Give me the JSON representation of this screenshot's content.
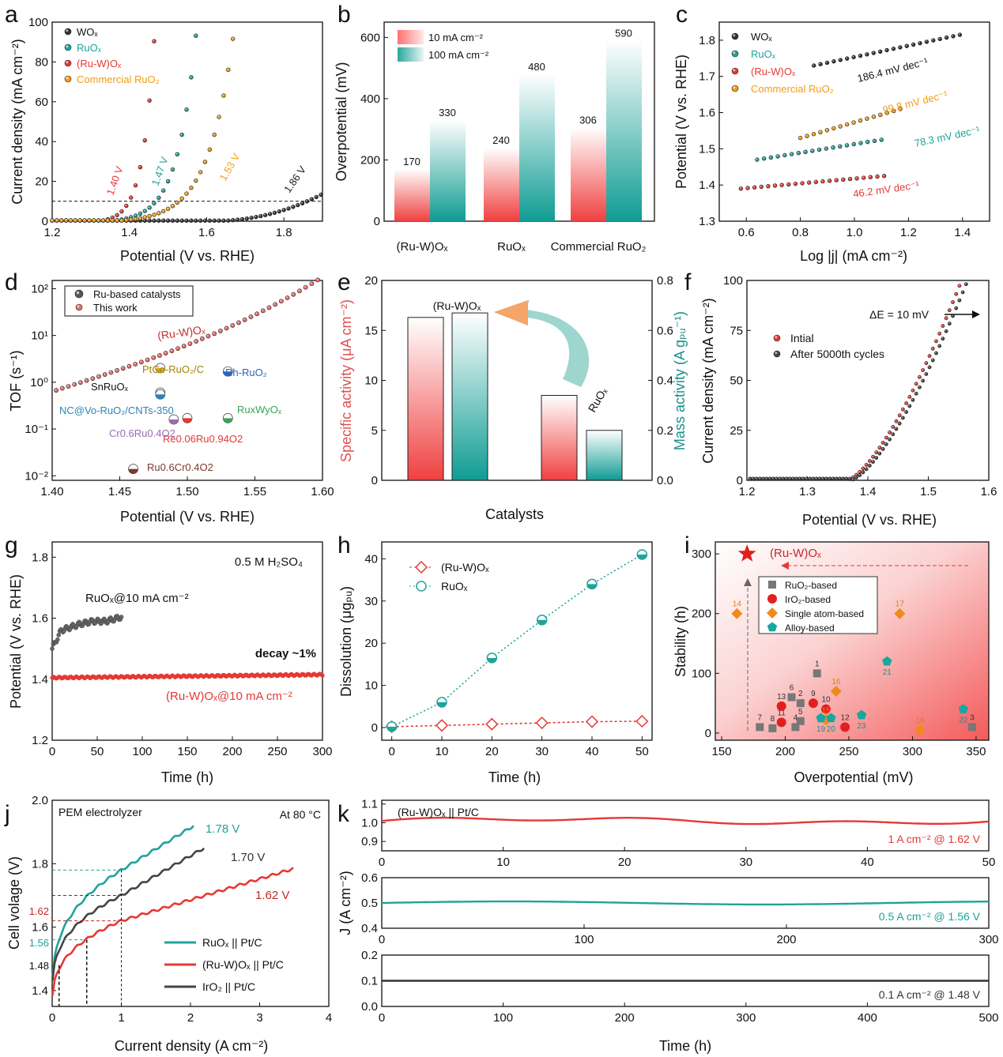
{
  "colors": {
    "black": "#333333",
    "teal": "#1fa39b",
    "red": "#e53935",
    "orange": "#f39c12",
    "grey": "#8a8a8a",
    "purple": "#9c6ab0",
    "blue": "#2a64c0",
    "green": "#3aa35a"
  },
  "chart_data": [
    {
      "panel": "a",
      "type": "line",
      "letter": "a",
      "xlabel": "Potential (V vs. RHE)",
      "ylabel": "Current density (mA cm⁻²)",
      "xlim": [
        1.2,
        1.9
      ],
      "ylim": [
        0,
        100
      ],
      "xticks": [
        "1.2",
        "1.4",
        "1.6",
        "1.8"
      ],
      "yticks": [
        "0",
        "20",
        "40",
        "60",
        "80",
        "100"
      ],
      "ref_line": 10,
      "series": [
        {
          "name": "WOx",
          "onset": 1.6,
          "v10": 1.86,
          "label": "1.86 V"
        },
        {
          "name": "RuOx",
          "onset": 1.36,
          "v10": 1.47,
          "label": "1.47 V"
        },
        {
          "name": "(Ru-W)Ox",
          "onset": 1.33,
          "v10": 1.4,
          "label": "1.40 V"
        },
        {
          "name": "Commercial RuO2",
          "onset": 1.38,
          "v10": 1.53,
          "label": "1.53 V"
        }
      ]
    },
    {
      "panel": "b",
      "type": "bar",
      "letter": "b",
      "ylabel": "Overpotential (mV)",
      "ylim": [
        0,
        650
      ],
      "yticks": [
        "0",
        "200",
        "400",
        "600"
      ],
      "categories": [
        "(Ru-W)Ox",
        "RuOx",
        "Commercial RuO2"
      ],
      "series": [
        {
          "name": "10 mA cm⁻²",
          "values": [
            170,
            240,
            306
          ]
        },
        {
          "name": "100 mA cm⁻²",
          "values": [
            330,
            480,
            590
          ]
        }
      ]
    },
    {
      "panel": "c",
      "type": "scatter",
      "letter": "c",
      "xlabel": "Log |j| (mA cm⁻²)",
      "ylabel": "Potential (V vs. RHE)",
      "xlim": [
        0.5,
        1.5
      ],
      "ylim": [
        1.3,
        1.85
      ],
      "xticks": [
        "0.6",
        "0.8",
        "1.0",
        "1.2",
        "1.4"
      ],
      "yticks": [
        "1.3",
        "1.4",
        "1.5",
        "1.6",
        "1.7",
        "1.8"
      ],
      "series": [
        {
          "name": "WOx",
          "x": [
            0.85,
            1.39
          ],
          "y": [
            1.73,
            1.815
          ],
          "slope": "186.4 mV dec⁻¹"
        },
        {
          "name": "RuOx",
          "x": [
            0.64,
            1.1
          ],
          "y": [
            1.47,
            1.525
          ],
          "slope": "78.3 mV dec⁻¹"
        },
        {
          "name": "(Ru-W)Ox",
          "x": [
            0.58,
            1.11
          ],
          "y": [
            1.39,
            1.425
          ],
          "slope": "46.2 mV dec⁻¹"
        },
        {
          "name": "Commercial RuO2",
          "x": [
            0.8,
            1.17
          ],
          "y": [
            1.53,
            1.61
          ],
          "slope": "99.8 mV dec⁻¹"
        }
      ]
    },
    {
      "panel": "d",
      "type": "scatter",
      "letter": "d",
      "xlabel": "Potential (V vs. RHE)",
      "ylabel": "TOF (s⁻¹)",
      "xlim": [
        1.4,
        1.6
      ],
      "yscale": "log",
      "ylim": [
        0.008,
        150
      ],
      "xticks": [
        "1.40",
        "1.45",
        "1.50",
        "1.55",
        "1.60"
      ],
      "yticks": [
        "10⁻²",
        "10⁻¹",
        "10⁰",
        "10¹",
        "10²"
      ],
      "legend": [
        "Ru-based catalysts",
        "This work"
      ],
      "curve_label": "(Ru-W)Ox",
      "points": [
        {
          "name": "PtCo-RuO2/C",
          "x": 1.48,
          "y": 2.0
        },
        {
          "name": "SnRuOx",
          "x": 1.48,
          "y": 0.6
        },
        {
          "name": "Rh-RuO2",
          "x": 1.53,
          "y": 1.7
        },
        {
          "name": "NC@Vo-RuO2/CNTs-350",
          "x": 1.48,
          "y": 0.55
        },
        {
          "name": "RuxWyOx",
          "x": 1.53,
          "y": 0.17
        },
        {
          "name": "Re0.06Ru0.94O2",
          "x": 1.5,
          "y": 0.17
        },
        {
          "name": "Cr0.6Ru0.4O2",
          "x": 1.49,
          "y": 0.16
        },
        {
          "name": "Ru0.6Cr0.4O2",
          "x": 1.46,
          "y": 0.014
        }
      ]
    },
    {
      "panel": "e",
      "type": "bar",
      "letter": "e",
      "xlabel": "Catalysts",
      "ylabel": "Specific activity (μA cm⁻²)",
      "ylabel2": "Mass activity (A gₚᵤ⁻¹)",
      "ylim": [
        0,
        20
      ],
      "ylim2": [
        0,
        0.8
      ],
      "yticks": [
        "0",
        "5",
        "10",
        "15",
        "20"
      ],
      "yticks2": [
        "0.0",
        "0.2",
        "0.4",
        "0.6",
        "0.8"
      ],
      "categories": [
        "(Ru-W)Ox",
        "RuOx"
      ],
      "series": [
        {
          "name": "Specific activity",
          "values": [
            16.3,
            8.5
          ]
        },
        {
          "name": "Mass activity",
          "values": [
            0.67,
            0.2
          ]
        }
      ]
    },
    {
      "panel": "f",
      "type": "line",
      "letter": "f",
      "xlabel": "Potential (V vs. RHE)",
      "ylabel": "Current density (mA cm⁻²)",
      "xlim": [
        1.2,
        1.6
      ],
      "ylim": [
        0,
        100
      ],
      "xticks": [
        "1.2",
        "1.3",
        "1.4",
        "1.5",
        "1.6"
      ],
      "yticks": [
        "0",
        "25",
        "50",
        "75",
        "100"
      ],
      "annotation": "ΔE = 10 mV",
      "series": [
        {
          "name": "Intial",
          "v100": 1.555
        },
        {
          "name": "After 5000th cycles",
          "v100": 1.565
        }
      ]
    },
    {
      "panel": "g",
      "type": "line",
      "letter": "g",
      "xlabel": "Time (h)",
      "ylabel": "Potential (V vs. RHE)",
      "xlim": [
        0,
        300
      ],
      "ylim": [
        1.2,
        1.85
      ],
      "xticks": [
        "0",
        "50",
        "100",
        "150",
        "200",
        "250",
        "300"
      ],
      "yticks": [
        "1.2",
        "1.4",
        "1.6",
        "1.8"
      ],
      "electrolyte": "0.5 M H₂SO₄",
      "decay": "decay ~1%",
      "series": [
        {
          "name": "RuOx@10 mA cm⁻²",
          "x": [
            0,
            10,
            30,
            45,
            60,
            78
          ],
          "y": [
            1.5,
            1.56,
            1.58,
            1.59,
            1.59,
            1.605
          ]
        },
        {
          "name": "(Ru-W)Ox@10 mA cm⁻²",
          "x": [
            0,
            300
          ],
          "y": [
            1.405,
            1.415
          ]
        }
      ]
    },
    {
      "panel": "h",
      "type": "line",
      "letter": "h",
      "xlabel": "Time (h)",
      "ylabel": "Dissolution (μgₚᵤ)",
      "xlim": [
        -2,
        52
      ],
      "ylim": [
        -3,
        44
      ],
      "xticks": [
        "0",
        "10",
        "20",
        "30",
        "40",
        "50"
      ],
      "yticks": [
        "0",
        "10",
        "20",
        "30",
        "40"
      ],
      "x": [
        0,
        10,
        20,
        30,
        40,
        50
      ],
      "series": [
        {
          "name": "(Ru-W)Ox",
          "values": [
            0.2,
            0.5,
            0.8,
            1.1,
            1.4,
            1.5
          ]
        },
        {
          "name": "RuOx",
          "values": [
            0.2,
            6,
            16.5,
            25.5,
            34,
            41
          ]
        }
      ]
    },
    {
      "panel": "i",
      "type": "scatter",
      "letter": "i",
      "xlabel": "Overpotential (mV)",
      "ylabel": "Stability (h)",
      "xlim": [
        145,
        360
      ],
      "ylim": [
        -12,
        320
      ],
      "xticks": [
        "150",
        "200",
        "250",
        "300",
        "350"
      ],
      "yticks": [
        "0",
        "100",
        "200",
        "300"
      ],
      "star": {
        "name": "(Ru-W)Ox",
        "x": 170,
        "y": 300
      },
      "legend": [
        "RuO₂-based",
        "IrO₂-based",
        "Single atom-based",
        "Alloy-based"
      ],
      "points": [
        {
          "id": "1",
          "g": 0,
          "x": 225,
          "y": 100
        },
        {
          "id": "2",
          "g": 0,
          "x": 212,
          "y": 50
        },
        {
          "id": "3",
          "g": 0,
          "x": 347,
          "y": 10
        },
        {
          "id": "4",
          "g": 0,
          "x": 208,
          "y": 10
        },
        {
          "id": "5",
          "g": 0,
          "x": 212,
          "y": 20
        },
        {
          "id": "6",
          "g": 0,
          "x": 205,
          "y": 60
        },
        {
          "id": "7",
          "g": 0,
          "x": 180,
          "y": 10
        },
        {
          "id": "8",
          "g": 0,
          "x": 190,
          "y": 8
        },
        {
          "id": "9",
          "g": 1,
          "x": 222,
          "y": 50
        },
        {
          "id": "10",
          "g": 1,
          "x": 232,
          "y": 40
        },
        {
          "id": "11",
          "g": 1,
          "x": 197,
          "y": 18
        },
        {
          "id": "12",
          "g": 1,
          "x": 247,
          "y": 10
        },
        {
          "id": "13",
          "g": 1,
          "x": 197,
          "y": 45
        },
        {
          "id": "14",
          "g": 2,
          "x": 162,
          "y": 200
        },
        {
          "id": "15",
          "g": 2,
          "x": 232,
          "y": 22
        },
        {
          "id": "16",
          "g": 2,
          "x": 240,
          "y": 70
        },
        {
          "id": "17",
          "g": 2,
          "x": 290,
          "y": 200
        },
        {
          "id": "18",
          "g": 2,
          "x": 306,
          "y": 5
        },
        {
          "id": "19",
          "g": 3,
          "x": 228,
          "y": 25
        },
        {
          "id": "20",
          "g": 3,
          "x": 236,
          "y": 25
        },
        {
          "id": "21",
          "g": 3,
          "x": 280,
          "y": 120
        },
        {
          "id": "22",
          "g": 3,
          "x": 340,
          "y": 40
        },
        {
          "id": "23",
          "g": 3,
          "x": 260,
          "y": 30
        }
      ]
    },
    {
      "panel": "j",
      "type": "line",
      "letter": "j",
      "xlabel": "Current density (A cm⁻²)",
      "ylabel": "Cell volage (V)",
      "xlim": [
        0,
        4
      ],
      "ylim": [
        1.35,
        2.0
      ],
      "xticks": [
        "0",
        "1",
        "2",
        "3",
        "4"
      ],
      "yticks": [
        "1.4",
        "1.6",
        "1.8",
        "2.0"
      ],
      "title": "PEM electrolyzer",
      "temperature": "At 80 °C",
      "marks": [
        "1.48",
        "1.56",
        "1.62"
      ],
      "series": [
        {
          "name": "RuOx || Pt/C",
          "v1": 1.78,
          "label": "1.78 V",
          "xmax": 2.05,
          "ymax": 1.92
        },
        {
          "name": "(Ru-W)Ox || Pt/C",
          "v1": 1.62,
          "label": "1.62 V",
          "xmax": 3.5,
          "ymax": 1.785
        },
        {
          "name": "IrO2 || Pt/C",
          "v1": 1.7,
          "label": "1.70 V",
          "xmax": 2.2,
          "ymax": 1.85
        }
      ]
    },
    {
      "panel": "k",
      "type": "line",
      "letter": "k",
      "xlabel": "Time (h)",
      "ylabel": "J (A cm⁻²)",
      "title": "(Ru-W)Ox || Pt/C",
      "subplots": [
        {
          "xlim": [
            0,
            50
          ],
          "ylim": [
            0.85,
            1.12
          ],
          "xticks": [
            "0",
            "10",
            "20",
            "30",
            "40",
            "50"
          ],
          "yticks": [
            "0.9",
            "1.0",
            "1.1"
          ],
          "value": 1.01,
          "label": "1 A cm⁻² @ 1.62 V"
        },
        {
          "xlim": [
            0,
            300
          ],
          "ylim": [
            0.4,
            0.6
          ],
          "xticks": [
            "0",
            "100",
            "200",
            "300"
          ],
          "yticks": [
            "0.4",
            "0.5",
            "0.6"
          ],
          "value": 0.5,
          "label": "0.5 A cm⁻² @ 1.56 V"
        },
        {
          "xlim": [
            0,
            500
          ],
          "ylim": [
            0,
            0.2
          ],
          "xticks": [
            "0",
            "100",
            "200",
            "300",
            "400",
            "500"
          ],
          "yticks": [
            "0.0",
            "0.1",
            "0.2"
          ],
          "value": 0.1,
          "label": "0.1 A cm⁻² @ 1.48 V"
        }
      ]
    }
  ]
}
